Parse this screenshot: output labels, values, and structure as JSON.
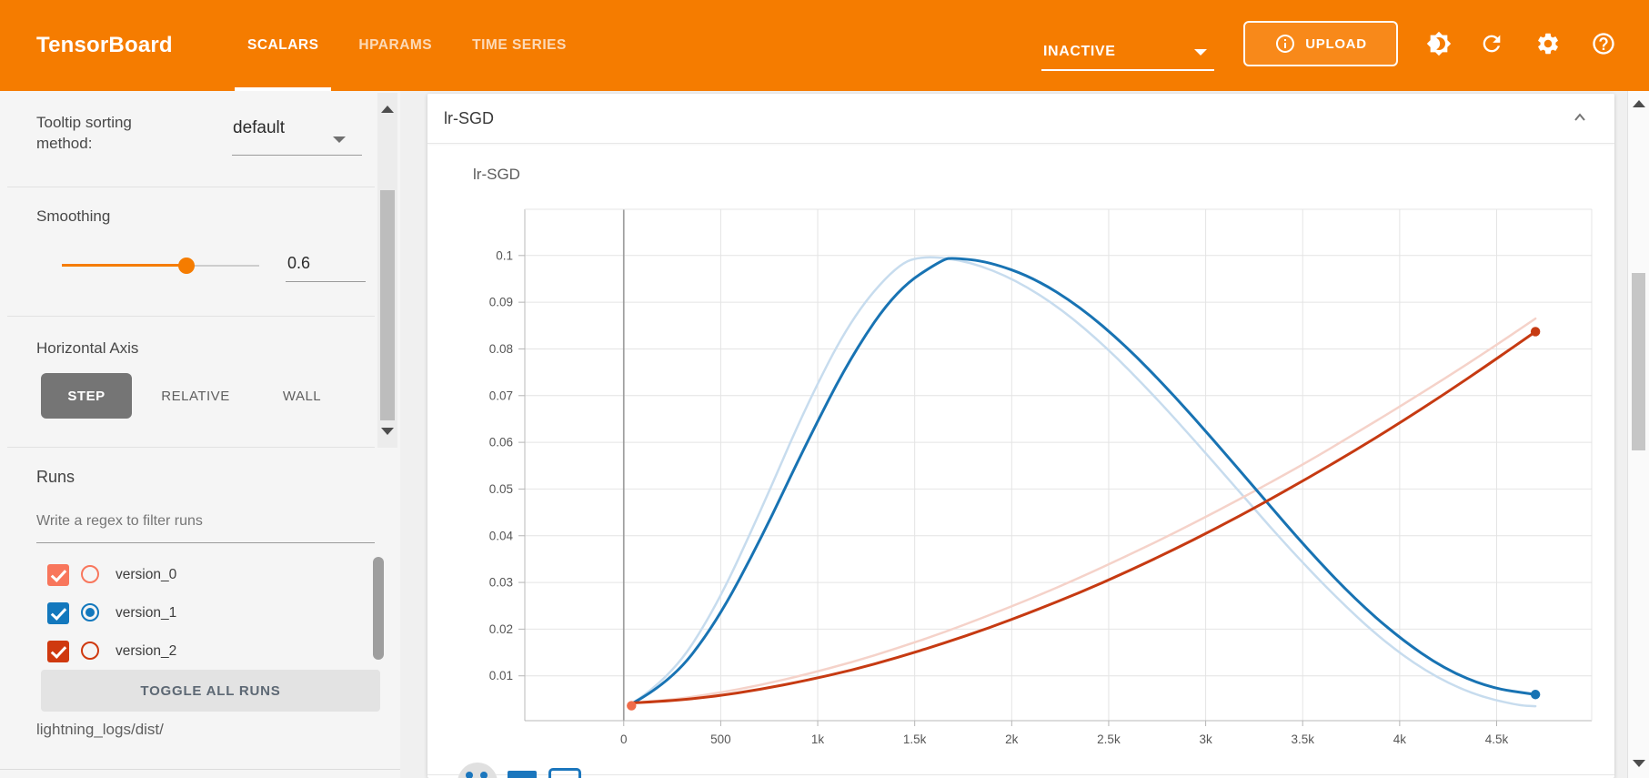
{
  "header": {
    "logo": "TensorBoard",
    "tabs": [
      {
        "label": "SCALARS",
        "active": true
      },
      {
        "label": "HPARAMS",
        "active": false
      },
      {
        "label": "TIME SERIES",
        "active": false
      }
    ],
    "status_dropdown": {
      "label": "INACTIVE"
    },
    "upload_button": {
      "label": "UPLOAD"
    },
    "icon_names": [
      "brightness-icon",
      "refresh-icon",
      "settings-icon",
      "help-icon"
    ],
    "bar_color": "#f57c00"
  },
  "sidebar": {
    "tooltip_sorting": {
      "label": "Tooltip sorting method:",
      "value": "default"
    },
    "smoothing": {
      "label": "Smoothing",
      "value": "0.6",
      "fraction": 0.63
    },
    "horizontal_axis": {
      "label": "Horizontal Axis",
      "options": [
        {
          "label": "STEP",
          "active": true
        },
        {
          "label": "RELATIVE",
          "active": false
        },
        {
          "label": "WALL",
          "active": false
        }
      ]
    },
    "runs": {
      "label": "Runs",
      "filter_placeholder": "Write a regex to filter runs",
      "items": [
        {
          "label": "version_0",
          "color": "#f8765c",
          "checked": true,
          "radio_selected": false
        },
        {
          "label": "version_1",
          "color": "#1378bd",
          "checked": true,
          "radio_selected": true
        },
        {
          "label": "version_2",
          "color": "#cf390f",
          "checked": true,
          "radio_selected": false
        }
      ],
      "toggle_button": "TOGGLE ALL RUNS",
      "log_path": "lightning_logs/dist/"
    }
  },
  "main": {
    "card_title": "lr-SGD",
    "chart_data": {
      "type": "line",
      "title": "lr-SGD",
      "x_ticks": [
        0,
        500,
        1000,
        1500,
        2000,
        2500,
        3000,
        3500,
        4000,
        4500
      ],
      "x_tick_labels": [
        "0",
        "500",
        "1k",
        "1.5k",
        "2k",
        "2.5k",
        "3k",
        "3.5k",
        "4k",
        "4.5k"
      ],
      "y_ticks": [
        0.01,
        0.02,
        0.03,
        0.04,
        0.05,
        0.06,
        0.07,
        0.08,
        0.09,
        0.1
      ],
      "x_range": [
        -510,
        4990
      ],
      "y_range": [
        0.0004,
        0.1099
      ],
      "grid": true,
      "legend": "none",
      "series": [
        {
          "name": "version_1 (unsmoothed)",
          "color": "#c7dcee",
          "width": 2.5,
          "end_dot": false,
          "points": [
            [
              40,
              0.004
            ],
            [
              235,
              0.0093
            ],
            [
              470,
              0.0242
            ],
            [
              705,
              0.0452
            ],
            [
              940,
              0.0678
            ],
            [
              1175,
              0.0867
            ],
            [
              1410,
              0.0981
            ],
            [
              1550,
              0.1
            ],
            [
              1785,
              0.0987
            ],
            [
              2020,
              0.0948
            ],
            [
              2255,
              0.0886
            ],
            [
              2490,
              0.0803
            ],
            [
              2725,
              0.0704
            ],
            [
              2960,
              0.0596
            ],
            [
              3195,
              0.0484
            ],
            [
              3430,
              0.0373
            ],
            [
              3665,
              0.0271
            ],
            [
              3900,
              0.018
            ],
            [
              4135,
              0.0109
            ],
            [
              4370,
              0.0061
            ],
            [
              4605,
              0.0037
            ],
            [
              4700,
              0.0035
            ]
          ]
        },
        {
          "name": "version_2 (unsmoothed)",
          "color": "#f5d2c9",
          "width": 2.5,
          "end_dot": false,
          "points": [
            [
              40,
              0.0042
            ],
            [
              235,
              0.0048
            ],
            [
              470,
              0.0062
            ],
            [
              705,
              0.008
            ],
            [
              940,
              0.0103
            ],
            [
              1175,
              0.0129
            ],
            [
              1410,
              0.0159
            ],
            [
              1645,
              0.0192
            ],
            [
              1880,
              0.0229
            ],
            [
              2115,
              0.0268
            ],
            [
              2350,
              0.031
            ],
            [
              2585,
              0.0355
            ],
            [
              2820,
              0.0402
            ],
            [
              3055,
              0.0452
            ],
            [
              3290,
              0.0504
            ],
            [
              3525,
              0.0558
            ],
            [
              3760,
              0.0616
            ],
            [
              3995,
              0.0675
            ],
            [
              4230,
              0.0736
            ],
            [
              4465,
              0.0799
            ],
            [
              4700,
              0.0865
            ]
          ]
        },
        {
          "name": "version_1",
          "color": "#1873b3",
          "width": 3,
          "end_dot": true,
          "points": [
            [
              40,
              0.004
            ],
            [
              235,
              0.0084
            ],
            [
              470,
              0.0209
            ],
            [
              705,
              0.0391
            ],
            [
              940,
              0.0597
            ],
            [
              1175,
              0.0787
            ],
            [
              1410,
              0.0928
            ],
            [
              1645,
              0.0992
            ],
            [
              1700,
              0.0995
            ],
            [
              1880,
              0.0987
            ],
            [
              2115,
              0.0952
            ],
            [
              2350,
              0.0891
            ],
            [
              2585,
              0.0808
            ],
            [
              2820,
              0.0708
            ],
            [
              3055,
              0.0598
            ],
            [
              3290,
              0.0484
            ],
            [
              3525,
              0.0371
            ],
            [
              3760,
              0.0268
            ],
            [
              3995,
              0.0182
            ],
            [
              4230,
              0.0115
            ],
            [
              4465,
              0.0074
            ],
            [
              4700,
              0.006
            ]
          ]
        },
        {
          "name": "version_2",
          "color": "#c63a12",
          "width": 3,
          "end_dot": true,
          "points": [
            [
              40,
              0.0042
            ],
            [
              235,
              0.0046
            ],
            [
              470,
              0.0056
            ],
            [
              705,
              0.0071
            ],
            [
              940,
              0.009
            ],
            [
              1175,
              0.0112
            ],
            [
              1410,
              0.0139
            ],
            [
              1645,
              0.0169
            ],
            [
              1880,
              0.0202
            ],
            [
              2115,
              0.0239
            ],
            [
              2350,
              0.0278
            ],
            [
              2585,
              0.0321
            ],
            [
              2820,
              0.0367
            ],
            [
              3055,
              0.0416
            ],
            [
              3290,
              0.0468
            ],
            [
              3525,
              0.0523
            ],
            [
              3760,
              0.058
            ],
            [
              3995,
              0.064
            ],
            [
              4230,
              0.0703
            ],
            [
              4465,
              0.0769
            ],
            [
              4700,
              0.0837
            ]
          ]
        },
        {
          "name": "version_0",
          "color": "#ef6c4a",
          "width": 3,
          "end_dot": true,
          "points": [
            [
              40,
              0.0036
            ]
          ]
        }
      ]
    }
  }
}
